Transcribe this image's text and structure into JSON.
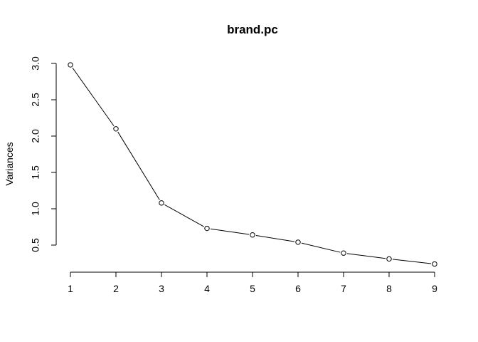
{
  "chart_data": {
    "type": "line",
    "title": "brand.pc",
    "xlabel": "",
    "ylabel": "Variances",
    "x": [
      1,
      2,
      3,
      4,
      5,
      6,
      7,
      8,
      9
    ],
    "series": [
      {
        "values": [
          2.98,
          2.1,
          1.08,
          0.73,
          0.64,
          0.54,
          0.39,
          0.31,
          0.24
        ]
      }
    ],
    "x_ticks": [
      "1",
      "2",
      "3",
      "4",
      "5",
      "6",
      "7",
      "8",
      "9"
    ],
    "y_ticks": [
      "0.5",
      "1.0",
      "1.5",
      "2.0",
      "2.5",
      "3.0"
    ],
    "ylim": [
      0.5,
      3.0
    ],
    "grid": false,
    "marker": "open-circle",
    "line_color": "#000000"
  }
}
